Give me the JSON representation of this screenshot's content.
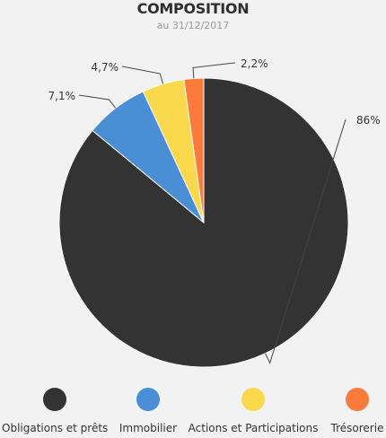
{
  "header": {
    "title": "COMPOSITION",
    "subtitle": "au 31/12/2017"
  },
  "chart_data": {
    "type": "pie",
    "title": "COMPOSITION",
    "subtitle": "au 31/12/2017",
    "start_angle_deg": 0,
    "direction": "clockwise",
    "slices": [
      {
        "label": "Obligations et prêts",
        "value": 86,
        "display": "86%",
        "color": "#333333"
      },
      {
        "label": "Immobilier",
        "value": 7.1,
        "display": "7,1%",
        "color": "#4a8fd6"
      },
      {
        "label": "Actions et Participations",
        "value": 4.7,
        "display": "4,7%",
        "color": "#f9d84c"
      },
      {
        "label": "Trésorerie",
        "value": 2.2,
        "display": "2,2%",
        "color": "#fb7a3c"
      }
    ],
    "legend_position": "bottom"
  },
  "legend": {
    "items": [
      {
        "label": "Obligations et prêts",
        "color": "#333333"
      },
      {
        "label": "Immobilier",
        "color": "#4a8fd6"
      },
      {
        "label": "Actions et Participations",
        "color": "#f9d84c"
      },
      {
        "label": "Trésorerie",
        "color": "#fb7a3c"
      }
    ]
  }
}
